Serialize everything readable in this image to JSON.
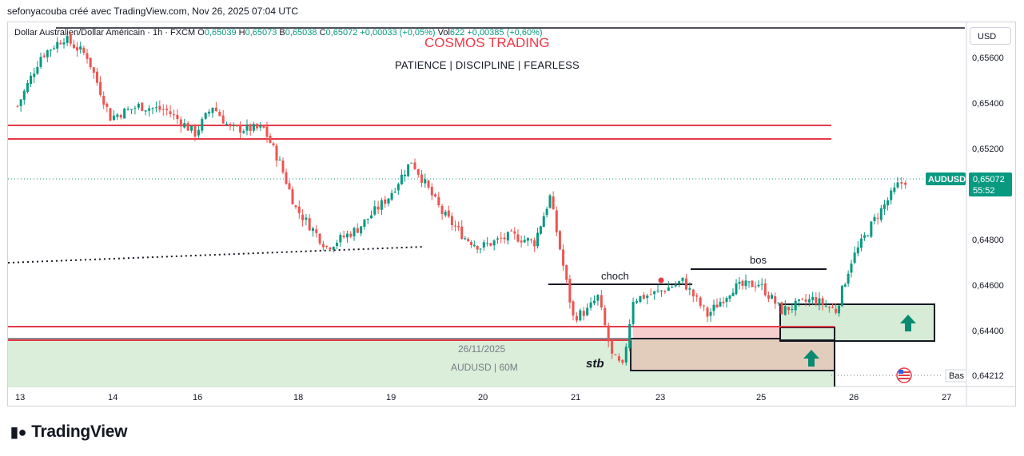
{
  "header": {
    "credit": "sefonyacouba créé avec TradingView.com, Nov 26, 2025 07:04 UTC"
  },
  "legend": {
    "symbol": "Dollar Australien/Dollar Américain · 1h · FXCM",
    "o_label": "O",
    "o_value": "0,65039",
    "h_label": "H",
    "h_value": "0,65073",
    "b_label": "B",
    "b_value": "0,65038",
    "c_label": "C",
    "c_value": "0,65072",
    "change": "+0,00033 (+0,05%)",
    "vol_label": "Vol",
    "vol_value": "622",
    "vol_change": "+0,00385 (+0,60%)"
  },
  "overlay": {
    "title": "COSMOS TRADING",
    "tagline": "PATIENCE   |   DISCIPLINE   |   FEARLESS"
  },
  "currency_selector": "USD",
  "footer": {
    "logo_text": "TradingView"
  },
  "colors": {
    "up": "#089981",
    "down": "#ef5350",
    "level_line": "#e53b46",
    "zone_green": "#d6ecd6",
    "zone_pink": "#f6c9c9",
    "zone_brown": "#e3cbbb",
    "arrow": "#0b8a72",
    "badge": "#089981"
  },
  "chart_data": {
    "type": "candlestick",
    "symbol": "AUDUSD",
    "timeframe": "1h",
    "x_tick_labels": [
      "13",
      "14",
      "16",
      "18",
      "19",
      "20",
      "21",
      "23",
      "25",
      "26",
      "27"
    ],
    "y_tick_labels": [
      "0,65600",
      "0,65400",
      "0,65200",
      "0,64800",
      "0,64600",
      "0,64400"
    ],
    "ylim": [
      0.6418,
      0.6574
    ],
    "series": [
      {
        "name": "AUDUSD",
        "close_path": [
          {
            "x": "13 00:00",
            "y": 0.654
          },
          {
            "x": "13 06:00",
            "y": 0.6562
          },
          {
            "x": "13 12:00",
            "y": 0.657
          },
          {
            "x": "13 18:00",
            "y": 0.6562
          },
          {
            "x": "14 00:00",
            "y": 0.6535
          },
          {
            "x": "14 08:00",
            "y": 0.654
          },
          {
            "x": "14 16:00",
            "y": 0.6538
          },
          {
            "x": "16 00:00",
            "y": 0.6528
          },
          {
            "x": "16 08:00",
            "y": 0.654
          },
          {
            "x": "16 16:00",
            "y": 0.653
          },
          {
            "x": "17 08:00",
            "y": 0.653
          },
          {
            "x": "17 16:00",
            "y": 0.6515
          },
          {
            "x": "18 00:00",
            "y": 0.6495
          },
          {
            "x": "18 08:00",
            "y": 0.6478
          },
          {
            "x": "18 16:00",
            "y": 0.6486
          },
          {
            "x": "19 00:00",
            "y": 0.65
          },
          {
            "x": "19 06:00",
            "y": 0.6516
          },
          {
            "x": "19 14:00",
            "y": 0.6493
          },
          {
            "x": "19 20:00",
            "y": 0.6482
          },
          {
            "x": "20 00:00",
            "y": 0.6478
          },
          {
            "x": "20 08:00",
            "y": 0.6483
          },
          {
            "x": "20 14:00",
            "y": 0.648
          },
          {
            "x": "20 18:00",
            "y": 0.65
          },
          {
            "x": "21 00:00",
            "y": 0.6447
          },
          {
            "x": "21 08:00",
            "y": 0.645
          },
          {
            "x": "21 14:00",
            "y": 0.6456
          },
          {
            "x": "21 22:00",
            "y": 0.643
          },
          {
            "x": "22 04:00",
            "y": 0.6425
          },
          {
            "x": "22 10:00",
            "y": 0.6455
          },
          {
            "x": "23 00:00",
            "y": 0.6458
          },
          {
            "x": "23 12:00",
            "y": 0.6463
          },
          {
            "x": "24 00:00",
            "y": 0.6448
          },
          {
            "x": "24 12:00",
            "y": 0.646
          },
          {
            "x": "25 00:00",
            "y": 0.6462
          },
          {
            "x": "25 06:00",
            "y": 0.645
          },
          {
            "x": "25 14:00",
            "y": 0.6455
          },
          {
            "x": "25 20:00",
            "y": 0.645
          },
          {
            "x": "26 00:00",
            "y": 0.6472
          },
          {
            "x": "26 06:00",
            "y": 0.649
          },
          {
            "x": "26 12:00",
            "y": 0.6505
          },
          {
            "x": "26 14:00",
            "y": 0.65072
          }
        ]
      }
    ],
    "last": {
      "symbol": "AUDUSD",
      "price": "0,65072",
      "countdown": "55:52"
    },
    "low_marker": {
      "label": "Bas",
      "price": "0,64212"
    },
    "annotations": {
      "choch": "choch",
      "bos": "bos",
      "stb": "stb",
      "watermark_date": "26/11/2025",
      "watermark_symbol": "AUDUSD | 60M"
    },
    "levels": [
      0.6537,
      0.6527,
      0.6442,
      0.6436
    ],
    "grid": false,
    "legend": "top-left"
  }
}
